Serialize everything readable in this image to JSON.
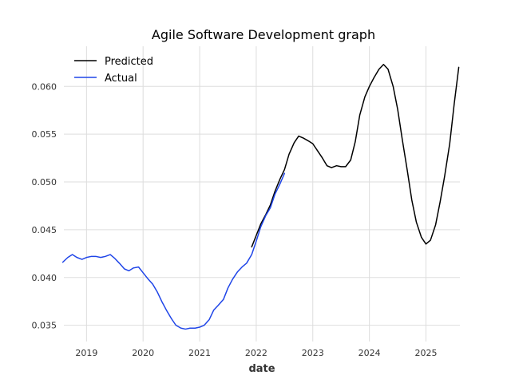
{
  "chart_data": {
    "type": "line",
    "title": "Agile Software Development graph",
    "xlabel": "date",
    "ylabel": "",
    "xlim": [
      2018.6,
      2025.6
    ],
    "ylim": [
      0.0333,
      0.0642
    ],
    "x_ticks": [
      2019,
      2020,
      2021,
      2022,
      2023,
      2024,
      2025
    ],
    "x_tick_labels": [
      "2019",
      "2020",
      "2021",
      "2022",
      "2023",
      "2024",
      "2025"
    ],
    "y_ticks": [
      0.035,
      0.04,
      0.045,
      0.05,
      0.055,
      0.06
    ],
    "y_tick_labels": [
      "0.035",
      "0.040",
      "0.045",
      "0.050",
      "0.055",
      "0.060"
    ],
    "grid": true,
    "legend_position": "top-left",
    "series": [
      {
        "name": "Predicted",
        "color": "#000000",
        "x": [
          2021.92,
          2022.0,
          2022.08,
          2022.17,
          2022.25,
          2022.33,
          2022.42,
          2022.5,
          2022.58,
          2022.67,
          2022.75,
          2022.83,
          2022.92,
          2023.0,
          2023.08,
          2023.17,
          2023.25,
          2023.33,
          2023.42,
          2023.5,
          2023.58,
          2023.67,
          2023.75,
          2023.83,
          2023.92,
          2024.0,
          2024.08,
          2024.17,
          2024.25,
          2024.33,
          2024.42,
          2024.5,
          2024.58,
          2024.67,
          2024.75,
          2024.83,
          2024.92,
          2025.0,
          2025.08,
          2025.17,
          2025.25,
          2025.33,
          2025.42,
          2025.5,
          2025.58
        ],
        "values": [
          0.0432,
          0.0444,
          0.0456,
          0.0466,
          0.0476,
          0.049,
          0.0503,
          0.0513,
          0.0529,
          0.0541,
          0.0548,
          0.0546,
          0.0543,
          0.054,
          0.0533,
          0.0525,
          0.0517,
          0.0515,
          0.0517,
          0.0516,
          0.0516,
          0.0523,
          0.0542,
          0.057,
          0.0589,
          0.06,
          0.0609,
          0.0618,
          0.0623,
          0.0618,
          0.06,
          0.0576,
          0.0545,
          0.0512,
          0.0481,
          0.0458,
          0.0442,
          0.0435,
          0.0439,
          0.0455,
          0.0479,
          0.0506,
          0.054,
          0.0582,
          0.062
        ]
      },
      {
        "name": "Actual",
        "color": "#1f45e8",
        "x": [
          2018.58,
          2018.67,
          2018.75,
          2018.83,
          2018.92,
          2019.0,
          2019.08,
          2019.17,
          2019.25,
          2019.33,
          2019.42,
          2019.5,
          2019.58,
          2019.67,
          2019.75,
          2019.83,
          2019.92,
          2020.0,
          2020.08,
          2020.17,
          2020.25,
          2020.33,
          2020.42,
          2020.5,
          2020.58,
          2020.67,
          2020.75,
          2020.83,
          2020.92,
          2021.0,
          2021.08,
          2021.17,
          2021.25,
          2021.33,
          2021.42,
          2021.5,
          2021.58,
          2021.67,
          2021.75,
          2021.83,
          2021.92,
          2022.0,
          2022.08,
          2022.17,
          2022.25,
          2022.33,
          2022.42,
          2022.5
        ],
        "values": [
          0.0416,
          0.0421,
          0.0424,
          0.0421,
          0.0419,
          0.0421,
          0.0422,
          0.0422,
          0.0421,
          0.0422,
          0.0424,
          0.042,
          0.0415,
          0.0409,
          0.0407,
          0.041,
          0.0411,
          0.0405,
          0.0399,
          0.0393,
          0.0385,
          0.0375,
          0.0365,
          0.0357,
          0.035,
          0.0347,
          0.0346,
          0.0347,
          0.0347,
          0.0348,
          0.035,
          0.0356,
          0.0366,
          0.0371,
          0.0377,
          0.0389,
          0.0398,
          0.0406,
          0.0411,
          0.0415,
          0.0424,
          0.0438,
          0.0453,
          0.0465,
          0.0473,
          0.0487,
          0.0498,
          0.0509
        ]
      }
    ]
  }
}
